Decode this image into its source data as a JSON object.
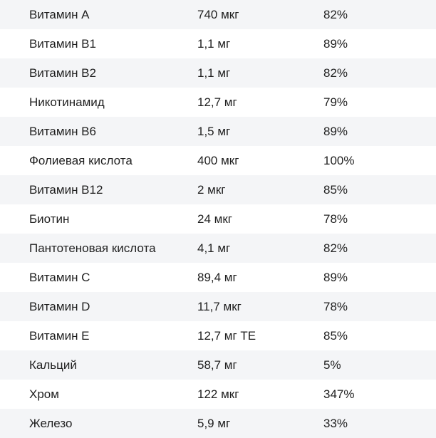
{
  "table": {
    "rows": [
      {
        "name": "Витамин А",
        "amount": "740 мкг",
        "percent": "82%"
      },
      {
        "name": "Витамин В1",
        "amount": "1,1 мг",
        "percent": "89%"
      },
      {
        "name": "Витамин В2",
        "amount": "1,1 мг",
        "percent": "82%"
      },
      {
        "name": "Никотинамид",
        "amount": "12,7 мг",
        "percent": "79%"
      },
      {
        "name": "Витамин В6",
        "amount": "1,5 мг",
        "percent": "89%"
      },
      {
        "name": "Фолиевая кислота",
        "amount": "400 мкг",
        "percent": "100%"
      },
      {
        "name": "Витамин В12",
        "amount": "2 мкг",
        "percent": "85%"
      },
      {
        "name": "Биотин",
        "amount": "24 мкг",
        "percent": "78%"
      },
      {
        "name": "Пантотеновая кислота",
        "amount": "4,1 мг",
        "percent": "82%"
      },
      {
        "name": "Витамин С",
        "amount": "89,4 мг",
        "percent": "89%"
      },
      {
        "name": "Витамин D",
        "amount": "11,7 мкг",
        "percent": "78%"
      },
      {
        "name": "Витамин Е",
        "amount": "12,7 мг ТЕ",
        "percent": "85%"
      },
      {
        "name": "Кальций",
        "amount": "58,7 мг",
        "percent": "5%"
      },
      {
        "name": "Хром",
        "amount": "122 мкг",
        "percent": "347%"
      },
      {
        "name": "Железо",
        "amount": "5,9 мг",
        "percent": "33%"
      }
    ]
  }
}
